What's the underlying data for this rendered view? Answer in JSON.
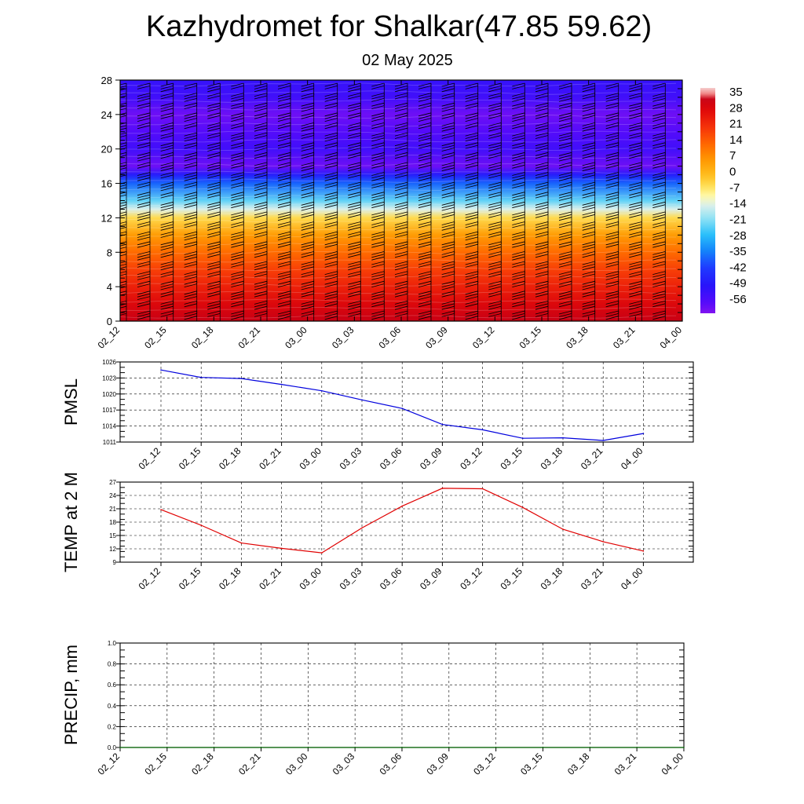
{
  "title": "Kazhydromet for Shalkar(47.85 59.62)",
  "subtitle": "02 May 2025",
  "time_labels": [
    "02_12",
    "02_15",
    "02_18",
    "02_21",
    "03_00",
    "03_03",
    "03_06",
    "03_09",
    "03_12",
    "03_15",
    "03_18",
    "03_21",
    "04_00"
  ],
  "colors": {
    "pmsl_line": "#0000dd",
    "temp_line": "#e00000",
    "precip_line": "#006400",
    "grid": "#000000"
  },
  "chart_data": [
    {
      "type": "heatmap",
      "name": "temperature-cross-section",
      "y_ticks": [
        0,
        4,
        8,
        12,
        16,
        20,
        24,
        28
      ],
      "ylim": [
        0,
        28
      ],
      "colorbar_labels": [
        "35",
        "28",
        "21",
        "14",
        "7",
        "0",
        "-7",
        "-14",
        "-21",
        "-28",
        "-35",
        "-42",
        "-49",
        "-56"
      ],
      "colorbar_range": [
        -60,
        38
      ],
      "level_profile": [
        {
          "level": 0,
          "value": 33
        },
        {
          "level": 2,
          "value": 29
        },
        {
          "level": 4,
          "value": 24
        },
        {
          "level": 6,
          "value": 19
        },
        {
          "level": 8,
          "value": 13
        },
        {
          "level": 10,
          "value": 6
        },
        {
          "level": 12,
          "value": -4
        },
        {
          "level": 13,
          "value": -13
        },
        {
          "level": 14,
          "value": -22
        },
        {
          "level": 16,
          "value": -36
        },
        {
          "level": 17,
          "value": -46
        },
        {
          "level": 18,
          "value": -58
        },
        {
          "level": 20,
          "value": -52
        },
        {
          "level": 22,
          "value": -55
        },
        {
          "level": 24,
          "value": -58
        },
        {
          "level": 26,
          "value": -52
        },
        {
          "level": 28,
          "value": -50
        }
      ]
    },
    {
      "type": "line",
      "name": "pmsl",
      "ylabel": "PMSL",
      "y_ticks": [
        1011,
        1014,
        1017,
        1020,
        1023,
        1026
      ],
      "ylim": [
        1011,
        1026
      ],
      "values": [
        1024.5,
        1023.1,
        1022.9,
        1021.8,
        1020.6,
        1018.9,
        1017.3,
        1014.3,
        1013.3,
        1011.7,
        1011.8,
        1011.3,
        1012.6
      ]
    },
    {
      "type": "line",
      "name": "temp-2m",
      "ylabel": "TEMP at 2 M",
      "y_ticks": [
        9,
        12,
        15,
        18,
        21,
        24,
        27
      ],
      "ylim": [
        9,
        27
      ],
      "values": [
        20.8,
        17.3,
        13.3,
        12.1,
        11.1,
        16.7,
        21.6,
        25.6,
        25.5,
        21.3,
        16.4,
        13.6,
        11.5
      ]
    },
    {
      "type": "line",
      "name": "precip",
      "ylabel": "PRECIP, mm",
      "y_ticks": [
        "0.0",
        "0.2",
        "0.4",
        "0.6",
        "0.8",
        "1.0"
      ],
      "ylim": [
        0,
        1
      ],
      "values": [
        0,
        0,
        0,
        0,
        0,
        0,
        0,
        0,
        0,
        0,
        0,
        0,
        0
      ]
    }
  ]
}
